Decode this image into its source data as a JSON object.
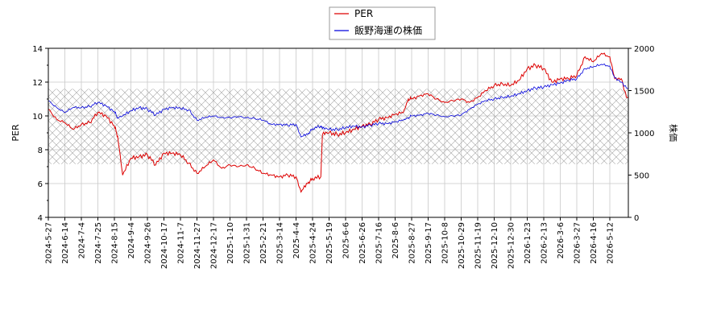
{
  "chart_data": {
    "type": "line",
    "title": "",
    "xlabel": "",
    "ylabel_left": "PER",
    "ylabel_right": "株価",
    "ylim_left": [
      4,
      14
    ],
    "ylim_right": [
      0,
      2000
    ],
    "yticks_left": [
      "4",
      "6",
      "8",
      "10",
      "12",
      "14"
    ],
    "yticks_right": [
      "0",
      "500",
      "1000",
      "1500",
      "2000"
    ],
    "x_ticks": [
      "2024-5-27",
      "2024-6-14",
      "2024-7-4",
      "2024-7-25",
      "2024-8-15",
      "2024-9-4",
      "2024-9-26",
      "2024-10-17",
      "2024-11-7",
      "2024-11-27",
      "2024-12-17",
      "2025-1-10",
      "2025-1-31",
      "2025-2-21",
      "2025-3-14",
      "2025-4-4",
      "2025-4-24",
      "2025-5-19",
      "2025-6-6",
      "2025-6-26",
      "2025-7-16",
      "2025-8-6",
      "2025-8-27",
      "2025-9-17",
      "2025-10-8",
      "2025-10-29",
      "2025-11-19",
      "2025-12-10",
      "2025-12-30",
      "2026-1-23",
      "2026-2-13",
      "2026-3-6",
      "2026-3-27",
      "2026-4-16",
      "2026-5-12"
    ],
    "grid": true,
    "legend_position": "top-center",
    "band_right": [
      630,
      1520
    ],
    "series": [
      {
        "name": "PER",
        "axis": "left",
        "color": "#dd0000",
        "points": [
          [
            0,
            10.4
          ],
          [
            0.5,
            9.8
          ],
          [
            1,
            9.6
          ],
          [
            1.5,
            9.2
          ],
          [
            2,
            9.5
          ],
          [
            2.5,
            9.6
          ],
          [
            3,
            10.2
          ],
          [
            3.5,
            10.0
          ],
          [
            4,
            9.4
          ],
          [
            4.2,
            8.8
          ],
          [
            4.5,
            6.5
          ],
          [
            5,
            7.5
          ],
          [
            5.5,
            7.6
          ],
          [
            6,
            7.7
          ],
          [
            6.5,
            7.1
          ],
          [
            7,
            7.8
          ],
          [
            7.5,
            7.8
          ],
          [
            8,
            7.7
          ],
          [
            8.5,
            7.2
          ],
          [
            9,
            6.6
          ],
          [
            9.5,
            7.0
          ],
          [
            10,
            7.4
          ],
          [
            10.5,
            6.9
          ],
          [
            11,
            7.1
          ],
          [
            11.5,
            7.0
          ],
          [
            12,
            7.1
          ],
          [
            12.5,
            6.9
          ],
          [
            13,
            6.6
          ],
          [
            13.5,
            6.5
          ],
          [
            14,
            6.4
          ],
          [
            14.5,
            6.5
          ],
          [
            15,
            6.4
          ],
          [
            15.3,
            5.5
          ],
          [
            15.7,
            6.0
          ],
          [
            16,
            6.3
          ],
          [
            16.5,
            6.4
          ],
          [
            16.6,
            8.9
          ],
          [
            17,
            9.0
          ],
          [
            17.5,
            8.9
          ],
          [
            18,
            9.0
          ],
          [
            18.5,
            9.2
          ],
          [
            19,
            9.4
          ],
          [
            19.5,
            9.5
          ],
          [
            20,
            9.8
          ],
          [
            20.5,
            9.9
          ],
          [
            21,
            10.1
          ],
          [
            21.5,
            10.2
          ],
          [
            21.8,
            11.0
          ],
          [
            22,
            11.0
          ],
          [
            22.5,
            11.2
          ],
          [
            23,
            11.3
          ],
          [
            23.5,
            11.0
          ],
          [
            24,
            10.8
          ],
          [
            24.5,
            10.9
          ],
          [
            25,
            11.0
          ],
          [
            25.5,
            10.8
          ],
          [
            26,
            11.1
          ],
          [
            26.5,
            11.5
          ],
          [
            27,
            11.8
          ],
          [
            27.5,
            11.9
          ],
          [
            28,
            11.8
          ],
          [
            28.5,
            12.1
          ],
          [
            29,
            12.8
          ],
          [
            29.5,
            13.0
          ],
          [
            30,
            12.8
          ],
          [
            30.5,
            12.0
          ],
          [
            31,
            12.2
          ],
          [
            31.5,
            12.2
          ],
          [
            32,
            12.4
          ],
          [
            32.5,
            13.5
          ],
          [
            33,
            13.2
          ],
          [
            33.5,
            13.7
          ],
          [
            34,
            13.5
          ],
          [
            34.3,
            12.2
          ],
          [
            34.7,
            12.2
          ],
          [
            35,
            11.1
          ],
          [
            35.5,
            11.1
          ],
          [
            35.8,
            10.9
          ]
        ]
      },
      {
        "name": "飯野海運の株価",
        "axis": "right",
        "color": "#0000dd",
        "points": [
          [
            0,
            1380
          ],
          [
            0.5,
            1300
          ],
          [
            1,
            1240
          ],
          [
            1.5,
            1300
          ],
          [
            2,
            1300
          ],
          [
            2.5,
            1310
          ],
          [
            3,
            1360
          ],
          [
            3.5,
            1320
          ],
          [
            4,
            1250
          ],
          [
            4.2,
            1180
          ],
          [
            4.5,
            1200
          ],
          [
            5,
            1260
          ],
          [
            5.5,
            1300
          ],
          [
            6,
            1280
          ],
          [
            6.5,
            1210
          ],
          [
            7,
            1280
          ],
          [
            7.5,
            1300
          ],
          [
            8,
            1290
          ],
          [
            8.5,
            1270
          ],
          [
            9,
            1150
          ],
          [
            9.5,
            1180
          ],
          [
            10,
            1200
          ],
          [
            10.5,
            1180
          ],
          [
            11,
            1180
          ],
          [
            11.5,
            1190
          ],
          [
            12,
            1180
          ],
          [
            12.5,
            1170
          ],
          [
            13,
            1150
          ],
          [
            13.5,
            1100
          ],
          [
            14,
            1100
          ],
          [
            14.5,
            1090
          ],
          [
            15,
            1100
          ],
          [
            15.3,
            950
          ],
          [
            15.7,
            980
          ],
          [
            16,
            1050
          ],
          [
            16.5,
            1080
          ],
          [
            16.6,
            1050
          ],
          [
            17,
            1040
          ],
          [
            17.5,
            1040
          ],
          [
            18,
            1060
          ],
          [
            18.5,
            1080
          ],
          [
            19,
            1070
          ],
          [
            19.5,
            1090
          ],
          [
            20,
            1110
          ],
          [
            20.5,
            1110
          ],
          [
            21,
            1130
          ],
          [
            21.5,
            1150
          ],
          [
            21.8,
            1180
          ],
          [
            22,
            1200
          ],
          [
            22.5,
            1210
          ],
          [
            23,
            1230
          ],
          [
            23.5,
            1210
          ],
          [
            24,
            1190
          ],
          [
            24.5,
            1200
          ],
          [
            25,
            1210
          ],
          [
            25.5,
            1280
          ],
          [
            26,
            1340
          ],
          [
            26.5,
            1380
          ],
          [
            27,
            1400
          ],
          [
            27.5,
            1420
          ],
          [
            28,
            1430
          ],
          [
            28.5,
            1460
          ],
          [
            29,
            1500
          ],
          [
            29.5,
            1530
          ],
          [
            30,
            1540
          ],
          [
            30.5,
            1570
          ],
          [
            31,
            1590
          ],
          [
            31.5,
            1620
          ],
          [
            32,
            1640
          ],
          [
            32.5,
            1760
          ],
          [
            33,
            1780
          ],
          [
            33.5,
            1810
          ],
          [
            34,
            1790
          ],
          [
            34.3,
            1650
          ],
          [
            34.7,
            1600
          ],
          [
            35,
            1530
          ],
          [
            35.5,
            1510
          ],
          [
            35.8,
            1510
          ]
        ]
      }
    ]
  }
}
